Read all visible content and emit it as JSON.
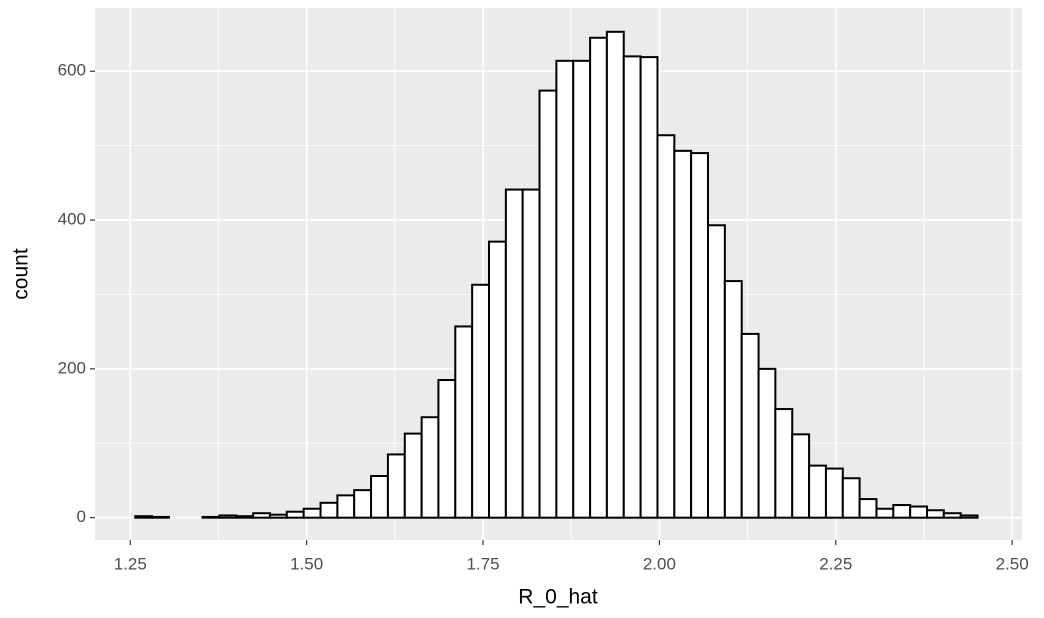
{
  "chart_data": {
    "type": "histogram",
    "xlabel": "R_0_hat",
    "ylabel": "count",
    "bins": [
      1.257,
      1.2809,
      1.3048,
      1.3286,
      1.3525,
      1.3764,
      1.4003,
      1.4242,
      1.448,
      1.4719,
      1.4958,
      1.5197,
      1.5436,
      1.5674,
      1.5913,
      1.6152,
      1.6391,
      1.663,
      1.6868,
      1.7107,
      1.7346,
      1.7585,
      1.7824,
      1.8062,
      1.8301,
      1.854,
      1.8779,
      1.9018,
      1.9256,
      1.9495,
      1.9734,
      1.9973,
      2.0212,
      2.045,
      2.0689,
      2.0928,
      2.1167,
      2.1406,
      2.1644,
      2.1883,
      2.2122,
      2.2361,
      2.26,
      2.2838,
      2.3077,
      2.3316,
      2.3555,
      2.3794,
      2.4032,
      2.4271,
      2.451
    ],
    "counts": [
      2,
      1,
      0,
      0,
      1,
      3,
      2,
      6,
      4,
      8,
      12,
      20,
      30,
      37,
      56,
      85,
      113,
      135,
      185,
      257,
      313,
      371,
      441,
      441,
      574,
      614,
      614,
      645,
      653,
      620,
      619,
      514,
      493,
      490,
      393,
      318,
      247,
      200,
      146,
      112,
      70,
      66,
      53,
      25,
      12,
      17,
      15,
      10,
      6,
      3
    ],
    "xlim": [
      1.2,
      2.514
    ],
    "ylim": [
      -30,
      685
    ],
    "xticks": [
      1.25,
      {
        "value": 1.5,
        "label": "1.50"
      },
      1.75,
      {
        "value": 2.0,
        "label": "2.00"
      },
      2.25,
      {
        "value": 2.5,
        "label": "2.50"
      }
    ],
    "yticks": [
      0,
      200,
      400,
      600
    ],
    "grid": true,
    "color": "#ffffff",
    "edgecolor": "#000000"
  }
}
